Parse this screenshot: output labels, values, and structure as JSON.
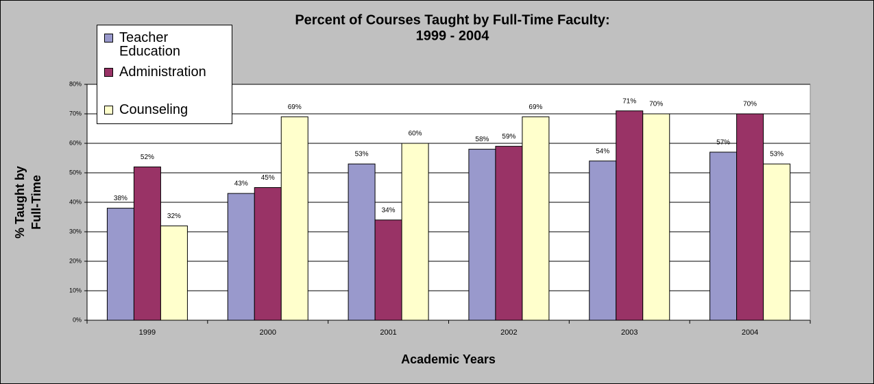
{
  "chart_data": {
    "type": "bar",
    "title": [
      "Percent of Courses Taught by Full-Time Faculty:",
      "1999 - 2004"
    ],
    "x_label": "Academic Years",
    "y_label": [
      "% Taught by",
      "Full-Time"
    ],
    "categories": [
      "1999",
      "2000",
      "2001",
      "2002",
      "2003",
      "2004"
    ],
    "series": [
      {
        "name": "Teacher Education",
        "color": "#9999cc",
        "values": [
          38,
          43,
          53,
          58,
          54,
          57
        ],
        "value_labels": [
          "38%",
          "43%",
          "53%",
          "58%",
          "54%",
          "57%"
        ]
      },
      {
        "name": "Administration",
        "color": "#993366",
        "values": [
          52,
          45,
          34,
          59,
          71,
          70
        ],
        "value_labels": [
          "52%",
          "45%",
          "34%",
          "59%",
          "71%",
          "70%"
        ]
      },
      {
        "name": "Counseling",
        "color": "#ffffcc",
        "values": [
          32,
          69,
          60,
          69,
          70,
          53
        ],
        "value_labels": [
          "32%",
          "69%",
          "60%",
          "69%",
          "70%",
          "53%"
        ]
      }
    ],
    "ylim": [
      0,
      80
    ],
    "yticks": [
      {
        "value": 0,
        "label": "0%"
      },
      {
        "value": 10,
        "label": "10%"
      },
      {
        "value": 20,
        "label": "20%"
      },
      {
        "value": 30,
        "label": "30%"
      },
      {
        "value": 40,
        "label": "40%"
      },
      {
        "value": 50,
        "label": "50%"
      },
      {
        "value": 60,
        "label": "60%"
      },
      {
        "value": 70,
        "label": "70%"
      },
      {
        "value": 80,
        "label": "80%"
      }
    ],
    "grid": true
  }
}
